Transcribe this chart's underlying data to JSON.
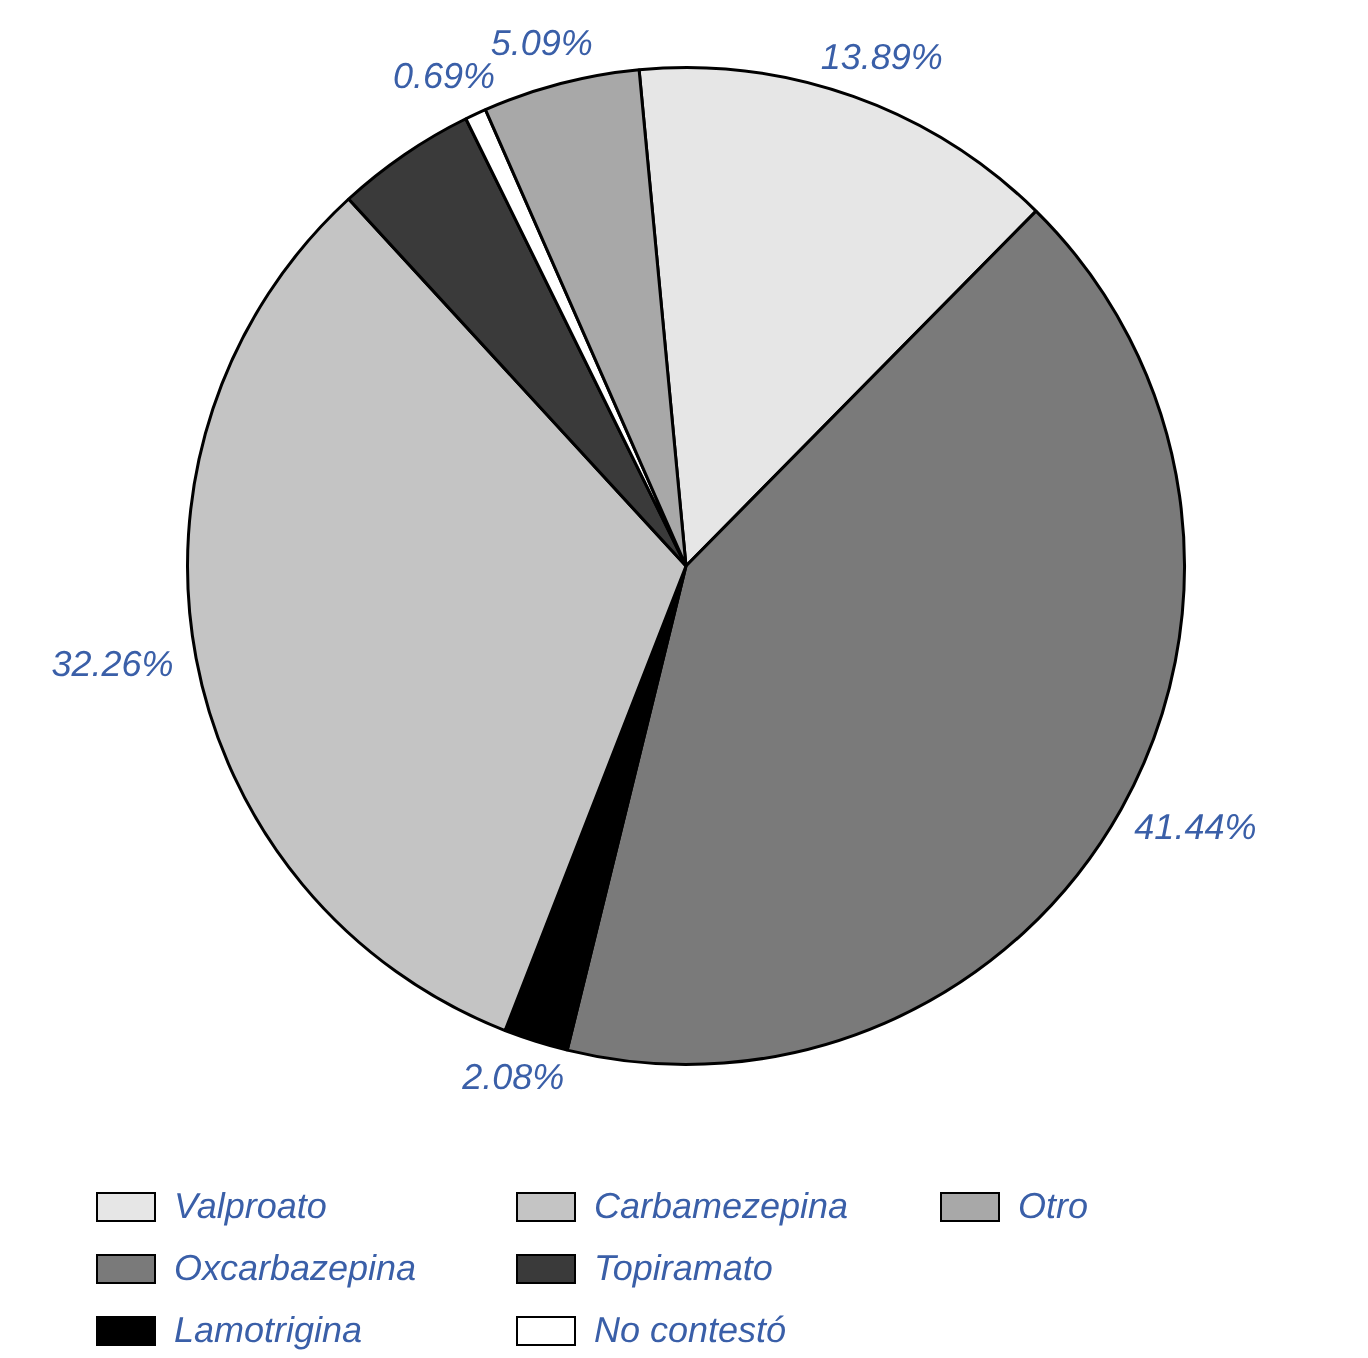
{
  "chart_data": {
    "type": "pie",
    "categories": [
      "Valproato",
      "Oxcarbazepina",
      "Lamotrigina",
      "Carbamezepina",
      "Topiramato",
      "No contestó",
      "Otro"
    ],
    "values": [
      13.89,
      41.44,
      2.08,
      32.26,
      4.55,
      0.69,
      5.09
    ],
    "value_labels": [
      "13.89%",
      "41.44%",
      "2.08%",
      "32.26%",
      null,
      "0.69%",
      "5.09%"
    ],
    "colors": [
      "#e6e6e6",
      "#7a7a7a",
      "#000000",
      "#c4c4c4",
      "#3a3a3a",
      "#ffffff",
      "#a8a8a8"
    ],
    "legend": "bottom"
  }
}
